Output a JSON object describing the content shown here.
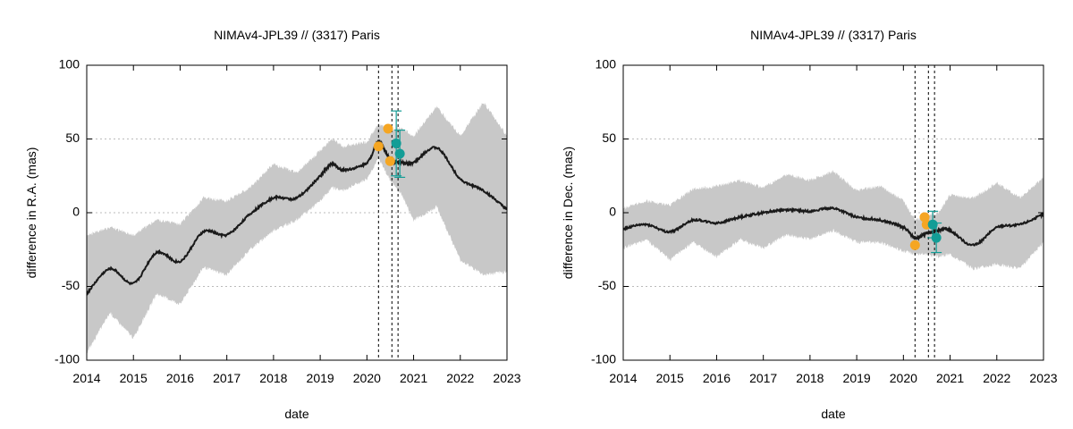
{
  "chart_data": [
    {
      "type": "line",
      "title": "NIMAv4-JPL39 // (3317) Paris",
      "xlabel": "date",
      "ylabel": "difference in R.A. (mas)",
      "xlim": [
        "2014-01-01",
        "2023-01-01"
      ],
      "ylim": [
        -100,
        100
      ],
      "x_ticks": [
        "2014",
        "2015",
        "2016",
        "2017",
        "2018",
        "2019",
        "2020",
        "2021",
        "2022",
        "2023"
      ],
      "y_ticks": [
        -100,
        -50,
        0,
        50,
        100
      ],
      "grid": "horizontal dotted",
      "colors": {
        "band": "#c8c8c8",
        "line": "#1a1a1a",
        "orange": "#f5a623",
        "teal": "#139d96"
      },
      "vlines": [
        "2020-04-01",
        "2020-07-15",
        "2020-09-01"
      ],
      "series": [
        {
          "type": "line",
          "x": [
            "2014-01-01",
            "2014-07-01",
            "2015-01-01",
            "2015-07-01",
            "2016-01-01",
            "2016-07-01",
            "2017-01-01",
            "2017-07-01",
            "2018-01-01",
            "2018-07-01",
            "2019-01-01",
            "2019-04-01",
            "2019-07-01",
            "2020-01-01",
            "2020-04-01",
            "2020-07-01",
            "2020-10-01",
            "2021-01-01",
            "2021-07-01",
            "2022-01-01",
            "2022-07-01",
            "2023-01-01"
          ],
          "y": [
            -55,
            -38,
            -48,
            -27,
            -33,
            -13,
            -15,
            -1,
            10,
            10,
            25,
            33,
            29,
            34,
            48,
            36,
            34,
            34,
            44,
            23,
            15,
            2
          ]
        },
        {
          "type": "band",
          "x": [
            "2014-01-01",
            "2014-07-01",
            "2015-01-01",
            "2015-07-01",
            "2016-01-01",
            "2016-07-01",
            "2017-01-01",
            "2017-07-01",
            "2018-01-01",
            "2018-07-01",
            "2019-01-01",
            "2019-04-01",
            "2019-07-01",
            "2020-01-01",
            "2020-04-01",
            "2020-07-01",
            "2020-10-01",
            "2021-01-01",
            "2021-07-01",
            "2022-01-01",
            "2022-07-01",
            "2023-01-01"
          ],
          "upper": [
            -15,
            -10,
            -15,
            -5,
            -8,
            10,
            8,
            17,
            33,
            27,
            42,
            50,
            45,
            48,
            60,
            57,
            57,
            52,
            72,
            52,
            75,
            52
          ],
          "lower": [
            -95,
            -68,
            -85,
            -55,
            -62,
            -37,
            -42,
            -25,
            -12,
            -5,
            8,
            17,
            15,
            23,
            37,
            22,
            12,
            -5,
            4,
            -32,
            -42,
            -40
          ]
        },
        {
          "type": "scatter",
          "color": "orange",
          "x": [
            "2020-04-01",
            "2020-06-15",
            "2020-07-01"
          ],
          "y": [
            45,
            57,
            35
          ]
        },
        {
          "type": "errorbar",
          "color": "teal",
          "x": [
            "2020-09-01",
            "2020-09-01"
          ],
          "y": [
            47,
            40
          ],
          "err": [
            22,
            16
          ]
        }
      ]
    },
    {
      "type": "line",
      "title": "NIMAv4-JPL39 // (3317) Paris",
      "xlabel": "date",
      "ylabel": "difference in Dec. (mas)",
      "xlim": [
        "2014-01-01",
        "2023-01-01"
      ],
      "ylim": [
        -100,
        100
      ],
      "x_ticks": [
        "2014",
        "2015",
        "2016",
        "2017",
        "2018",
        "2019",
        "2020",
        "2021",
        "2022",
        "2023"
      ],
      "y_ticks": [
        -100,
        -50,
        0,
        50,
        100
      ],
      "grid": "horizontal dotted",
      "colors": {
        "band": "#c8c8c8",
        "line": "#1a1a1a",
        "orange": "#f5a623",
        "teal": "#139d96"
      },
      "vlines": [
        "2020-04-01",
        "2020-07-15",
        "2020-09-01"
      ],
      "series": [
        {
          "type": "line",
          "x": [
            "2014-01-01",
            "2014-07-01",
            "2015-01-01",
            "2015-07-01",
            "2016-01-01",
            "2016-07-01",
            "2017-01-01",
            "2017-07-01",
            "2018-01-01",
            "2018-07-01",
            "2019-01-01",
            "2019-07-01",
            "2020-01-01",
            "2020-04-01",
            "2020-07-01",
            "2020-10-01",
            "2021-01-01",
            "2021-07-01",
            "2022-01-01",
            "2022-07-01",
            "2023-01-01"
          ],
          "y": [
            -11,
            -8,
            -13,
            -5,
            -7,
            -3,
            0,
            2,
            1,
            3,
            -3,
            -5,
            -10,
            -17,
            -14,
            -12,
            -12,
            -22,
            -10,
            -8,
            -1
          ]
        },
        {
          "type": "band",
          "x": [
            "2014-01-01",
            "2014-07-01",
            "2015-01-01",
            "2015-07-01",
            "2016-01-01",
            "2016-07-01",
            "2017-01-01",
            "2017-07-01",
            "2018-01-01",
            "2018-07-01",
            "2019-01-01",
            "2019-07-01",
            "2020-01-01",
            "2020-04-01",
            "2020-07-01",
            "2020-10-01",
            "2021-01-01",
            "2021-07-01",
            "2022-01-01",
            "2022-07-01",
            "2023-01-01"
          ],
          "upper": [
            3,
            8,
            5,
            16,
            18,
            22,
            17,
            26,
            22,
            28,
            15,
            18,
            8,
            -5,
            -3,
            0,
            12,
            10,
            20,
            10,
            24
          ],
          "lower": [
            -24,
            -18,
            -32,
            -20,
            -30,
            -18,
            -24,
            -15,
            -18,
            -12,
            -20,
            -20,
            -26,
            -28,
            -28,
            -30,
            -28,
            -38,
            -35,
            -38,
            -20
          ]
        },
        {
          "type": "scatter",
          "color": "orange",
          "x": [
            "2020-04-01",
            "2020-06-15",
            "2020-07-01"
          ],
          "y": [
            -22,
            -3,
            -8
          ]
        },
        {
          "type": "errorbar",
          "color": "teal",
          "x": [
            "2020-09-01",
            "2020-09-01"
          ],
          "y": [
            -8,
            -17
          ],
          "err": [
            9,
            10
          ]
        }
      ]
    }
  ]
}
